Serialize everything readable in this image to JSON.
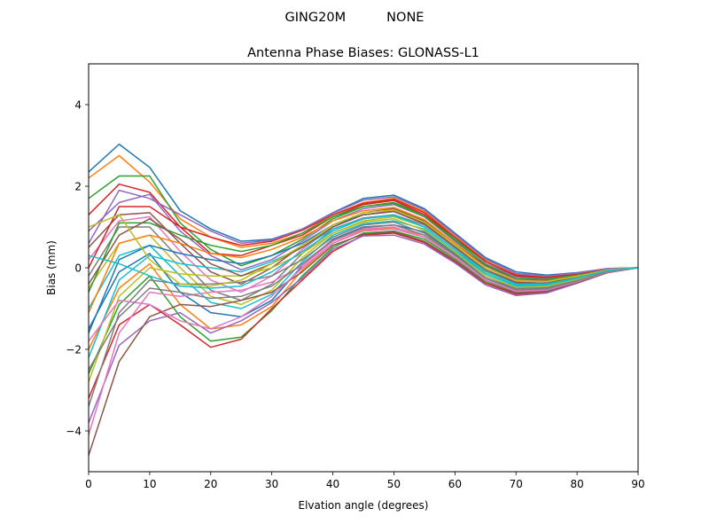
{
  "suptitle": "GING20M          NONE",
  "chart_data": {
    "type": "line",
    "title": "Antenna Phase Biases: GLONASS-L1",
    "xlabel": "Elvation angle (degrees)",
    "ylabel": "Bias (mm)",
    "xlim": [
      0,
      90
    ],
    "ylim": [
      -5,
      5
    ],
    "xticks": [
      0,
      10,
      20,
      30,
      40,
      50,
      60,
      70,
      80,
      90
    ],
    "xtick_labels": [
      "0",
      "10",
      "20",
      "30",
      "40",
      "50",
      "60",
      "70",
      "80",
      "90"
    ],
    "yticks": [
      -4,
      -2,
      0,
      2,
      4
    ],
    "ytick_labels": [
      "−4",
      "−2",
      "0",
      "2",
      "4"
    ],
    "grid": false,
    "legend": "none",
    "colors": [
      "#1f77b4",
      "#ff7f0e",
      "#2ca02c",
      "#d62728",
      "#9467bd",
      "#8c564b",
      "#e377c2",
      "#7f7f7f",
      "#bcbd22",
      "#17becf"
    ],
    "x": [
      0,
      5,
      10,
      15,
      20,
      25,
      30,
      35,
      40,
      45,
      50,
      55,
      60,
      65,
      70,
      75,
      80,
      85,
      90
    ],
    "series": [
      {
        "values": [
          2.35,
          3.03,
          2.46,
          1.4,
          0.95,
          0.65,
          0.7,
          0.95,
          1.35,
          1.7,
          1.78,
          1.45,
          0.85,
          0.25,
          -0.1,
          -0.18,
          -0.12,
          -0.02,
          0
        ]
      },
      {
        "values": [
          2.2,
          2.75,
          2.1,
          1.2,
          0.75,
          0.5,
          0.6,
          0.85,
          1.3,
          1.6,
          1.7,
          1.38,
          0.8,
          0.2,
          -0.15,
          -0.22,
          -0.14,
          -0.03,
          0
        ]
      },
      {
        "values": [
          1.7,
          2.25,
          2.25,
          1.1,
          0.45,
          0.05,
          0.3,
          0.7,
          1.2,
          1.5,
          1.6,
          1.3,
          0.7,
          0.15,
          -0.2,
          -0.25,
          -0.15,
          -0.03,
          0
        ]
      },
      {
        "values": [
          1.3,
          2.05,
          1.85,
          1.0,
          0.35,
          0.3,
          0.55,
          0.8,
          1.25,
          1.55,
          1.65,
          1.3,
          0.75,
          0.15,
          -0.18,
          -0.24,
          -0.15,
          -0.03,
          0
        ]
      },
      {
        "values": [
          0.9,
          1.6,
          1.8,
          0.9,
          0.3,
          -0.05,
          0.2,
          0.65,
          1.15,
          1.45,
          1.55,
          1.25,
          0.65,
          0.1,
          -0.22,
          -0.28,
          -0.17,
          -0.04,
          0
        ]
      },
      {
        "values": [
          0.5,
          1.3,
          1.35,
          0.6,
          -0.1,
          -0.4,
          0.0,
          0.55,
          1.05,
          1.35,
          1.45,
          1.15,
          0.6,
          0.05,
          -0.28,
          -0.32,
          -0.2,
          -0.05,
          0
        ]
      },
      {
        "values": [
          0.2,
          1.15,
          1.25,
          0.4,
          -0.3,
          -0.6,
          -0.2,
          0.45,
          1.0,
          1.3,
          1.4,
          1.1,
          0.55,
          0.0,
          -0.3,
          -0.34,
          -0.2,
          -0.05,
          0
        ]
      },
      {
        "values": [
          -0.2,
          1.0,
          1.0,
          0.2,
          -0.55,
          -0.8,
          -0.4,
          0.35,
          0.95,
          1.22,
          1.3,
          1.05,
          0.5,
          -0.05,
          -0.35,
          -0.38,
          -0.22,
          -0.06,
          0
        ]
      },
      {
        "values": [
          -0.5,
          0.6,
          0.8,
          0.0,
          -0.7,
          -0.9,
          -0.55,
          0.25,
          0.85,
          1.15,
          1.25,
          1.0,
          0.45,
          -0.1,
          -0.4,
          -0.42,
          -0.25,
          -0.07,
          0
        ]
      },
      {
        "values": [
          -1.0,
          0.3,
          0.55,
          -0.2,
          -0.85,
          -1.0,
          -0.65,
          0.15,
          0.8,
          1.08,
          1.15,
          0.95,
          0.4,
          -0.15,
          -0.45,
          -0.45,
          -0.27,
          -0.08,
          0
        ]
      },
      {
        "values": [
          -1.5,
          -0.1,
          0.35,
          -0.6,
          -1.1,
          -1.2,
          -0.8,
          0.05,
          0.7,
          1.0,
          1.05,
          0.88,
          0.35,
          -0.2,
          -0.5,
          -0.48,
          -0.3,
          -0.09,
          0
        ]
      },
      {
        "values": [
          -2.0,
          -0.5,
          0.1,
          -0.9,
          -1.5,
          -1.4,
          -0.95,
          -0.05,
          0.6,
          0.92,
          0.98,
          0.8,
          0.3,
          -0.25,
          -0.55,
          -0.52,
          -0.32,
          -0.1,
          0
        ]
      },
      {
        "values": [
          -2.6,
          -0.9,
          -0.2,
          -1.2,
          -1.8,
          -1.7,
          -1.05,
          -0.2,
          0.5,
          0.85,
          0.9,
          0.7,
          0.22,
          -0.32,
          -0.6,
          -0.56,
          -0.35,
          -0.11,
          0
        ]
      },
      {
        "values": [
          -3.2,
          -1.4,
          -0.9,
          -1.4,
          -1.95,
          -1.75,
          -1.0,
          -0.3,
          0.4,
          0.8,
          0.85,
          0.62,
          0.15,
          -0.38,
          -0.65,
          -0.6,
          -0.37,
          -0.12,
          0
        ]
      },
      {
        "values": [
          -3.8,
          -1.9,
          -1.3,
          -1.1,
          -1.6,
          -1.3,
          -0.85,
          -0.25,
          0.45,
          0.78,
          0.8,
          0.58,
          0.12,
          -0.42,
          -0.68,
          -0.62,
          -0.38,
          -0.12,
          0
        ]
      },
      {
        "values": [
          -4.6,
          -2.3,
          -1.2,
          -0.9,
          -0.95,
          -0.8,
          -0.6,
          -0.1,
          0.55,
          0.82,
          0.88,
          0.65,
          0.18,
          -0.36,
          -0.62,
          -0.58,
          -0.36,
          -0.11,
          0
        ]
      },
      {
        "values": [
          -4.1,
          -1.6,
          -0.6,
          -0.7,
          -0.6,
          -0.55,
          -0.35,
          0.05,
          0.65,
          0.95,
          1.0,
          0.75,
          0.25,
          -0.3,
          -0.57,
          -0.54,
          -0.33,
          -0.1,
          0
        ]
      },
      {
        "values": [
          -3.4,
          -1.1,
          -0.3,
          -0.4,
          -0.4,
          -0.35,
          -0.2,
          0.2,
          0.75,
          1.05,
          1.12,
          0.85,
          0.32,
          -0.25,
          -0.52,
          -0.5,
          -0.31,
          -0.09,
          0
        ]
      },
      {
        "values": [
          -2.8,
          -0.7,
          0.0,
          -0.15,
          -0.2,
          -0.2,
          0.0,
          0.35,
          0.85,
          1.12,
          1.2,
          0.92,
          0.38,
          -0.2,
          -0.48,
          -0.46,
          -0.28,
          -0.08,
          0
        ]
      },
      {
        "values": [
          -2.2,
          -0.3,
          0.3,
          0.1,
          0.0,
          -0.1,
          0.15,
          0.5,
          0.95,
          1.2,
          1.3,
          1.0,
          0.45,
          -0.14,
          -0.43,
          -0.42,
          -0.26,
          -0.07,
          0
        ]
      },
      {
        "values": [
          -1.6,
          0.2,
          0.55,
          0.35,
          0.2,
          0.1,
          0.3,
          0.6,
          1.05,
          1.3,
          1.38,
          1.08,
          0.52,
          -0.08,
          -0.38,
          -0.38,
          -0.23,
          -0.06,
          0
        ]
      },
      {
        "values": [
          -1.1,
          0.6,
          0.8,
          0.6,
          0.35,
          0.25,
          0.45,
          0.75,
          1.15,
          1.4,
          1.48,
          1.18,
          0.6,
          0.0,
          -0.32,
          -0.33,
          -0.2,
          -0.05,
          0
        ]
      },
      {
        "values": [
          -0.6,
          1.1,
          1.1,
          0.8,
          0.55,
          0.4,
          0.55,
          0.85,
          1.25,
          1.5,
          1.58,
          1.26,
          0.68,
          0.08,
          -0.26,
          -0.29,
          -0.17,
          -0.04,
          0
        ]
      },
      {
        "values": [
          0.0,
          1.5,
          1.5,
          1.0,
          0.75,
          0.55,
          0.65,
          0.92,
          1.3,
          1.58,
          1.68,
          1.35,
          0.75,
          0.16,
          -0.2,
          -0.24,
          -0.15,
          -0.03,
          0
        ]
      },
      {
        "values": [
          0.6,
          1.9,
          1.7,
          1.3,
          0.9,
          0.6,
          0.68,
          0.95,
          1.34,
          1.66,
          1.74,
          1.42,
          0.82,
          0.22,
          -0.14,
          -0.2,
          -0.13,
          -0.02,
          0
        ]
      },
      {
        "values": [
          -0.4,
          0.8,
          1.2,
          0.7,
          0.1,
          -0.2,
          0.1,
          0.5,
          1.0,
          1.3,
          1.38,
          1.08,
          0.5,
          -0.05,
          -0.36,
          -0.38,
          -0.23,
          -0.06,
          0
        ]
      },
      {
        "values": [
          -1.8,
          -0.8,
          -0.9,
          -1.3,
          -1.5,
          -1.2,
          -0.7,
          0.0,
          0.6,
          0.9,
          0.95,
          0.75,
          0.25,
          -0.3,
          -0.58,
          -0.55,
          -0.34,
          -0.1,
          0
        ]
      },
      {
        "values": [
          -2.5,
          -1.2,
          -0.5,
          -0.6,
          -0.75,
          -0.7,
          -0.45,
          0.1,
          0.68,
          0.98,
          1.05,
          0.8,
          0.3,
          -0.26,
          -0.54,
          -0.52,
          -0.32,
          -0.09,
          0
        ]
      },
      {
        "values": [
          1.0,
          1.3,
          0.2,
          -0.4,
          -0.45,
          -0.3,
          0.1,
          0.55,
          1.05,
          1.35,
          1.42,
          1.12,
          0.55,
          0.0,
          -0.32,
          -0.34,
          -0.21,
          -0.05,
          0
        ]
      },
      {
        "values": [
          0.3,
          0.1,
          -0.2,
          -0.45,
          -0.5,
          -0.45,
          -0.1,
          0.4,
          0.9,
          1.2,
          1.28,
          1.0,
          0.45,
          -0.08,
          -0.4,
          -0.4,
          -0.25,
          -0.07,
          0
        ]
      }
    ]
  }
}
